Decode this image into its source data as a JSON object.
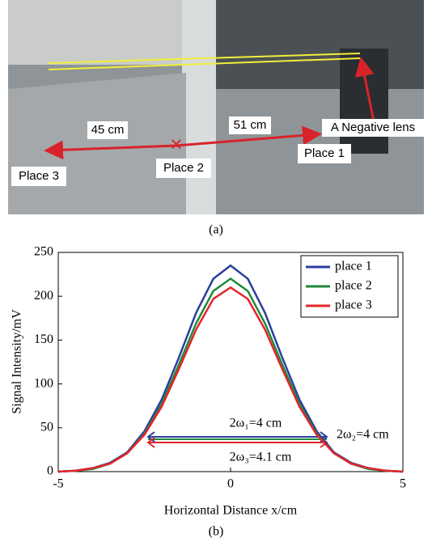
{
  "figure_a": {
    "labels": {
      "lens": "A Negative lens",
      "d1": "51 cm",
      "d2": "45 cm",
      "p1": "Place 1",
      "p2": "Place 2",
      "p3": "Place 3"
    },
    "caption": "(a)"
  },
  "chart_data": {
    "type": "line",
    "caption": "(b)",
    "x_label": "Horizontal Distance x/cm",
    "y_label": "Signal Intensity/mV",
    "x": [
      -5,
      -4.5,
      -4,
      -3.5,
      -3,
      -2.5,
      -2,
      -1.5,
      -1,
      -0.5,
      0,
      0.5,
      1,
      1.5,
      2,
      2.5,
      3,
      3.5,
      4,
      4.5,
      5
    ],
    "series": [
      {
        "name": "place 1",
        "color": "#2a3f9e",
        "values": [
          0,
          1,
          4,
          10,
          22,
          46,
          82,
          130,
          181,
          220,
          235,
          220,
          181,
          130,
          82,
          46,
          22,
          10,
          4,
          1,
          0
        ]
      },
      {
        "name": "place 2",
        "color": "#1e8a3c",
        "values": [
          0,
          1,
          3,
          9,
          21,
          43,
          77,
          122,
          169,
          206,
          220,
          206,
          169,
          122,
          77,
          43,
          21,
          9,
          3,
          1,
          0
        ]
      },
      {
        "name": "place 3",
        "color": "#e5242b",
        "values": [
          0,
          1,
          4,
          9,
          21,
          42,
          74,
          117,
          162,
          197,
          210,
          197,
          162,
          117,
          74,
          42,
          21,
          9,
          4,
          1,
          0
        ]
      }
    ],
    "annotations": [
      "2ω₁=4 cm",
      "2ω₂=4 cm",
      "2ω₃=4.1 cm"
    ],
    "xlim": [
      -5,
      5
    ],
    "xticks": [
      -5,
      0,
      5
    ],
    "ylim": [
      0,
      250
    ],
    "yticks": [
      0,
      50,
      100,
      150,
      200,
      250
    ],
    "legend": "upper right"
  }
}
